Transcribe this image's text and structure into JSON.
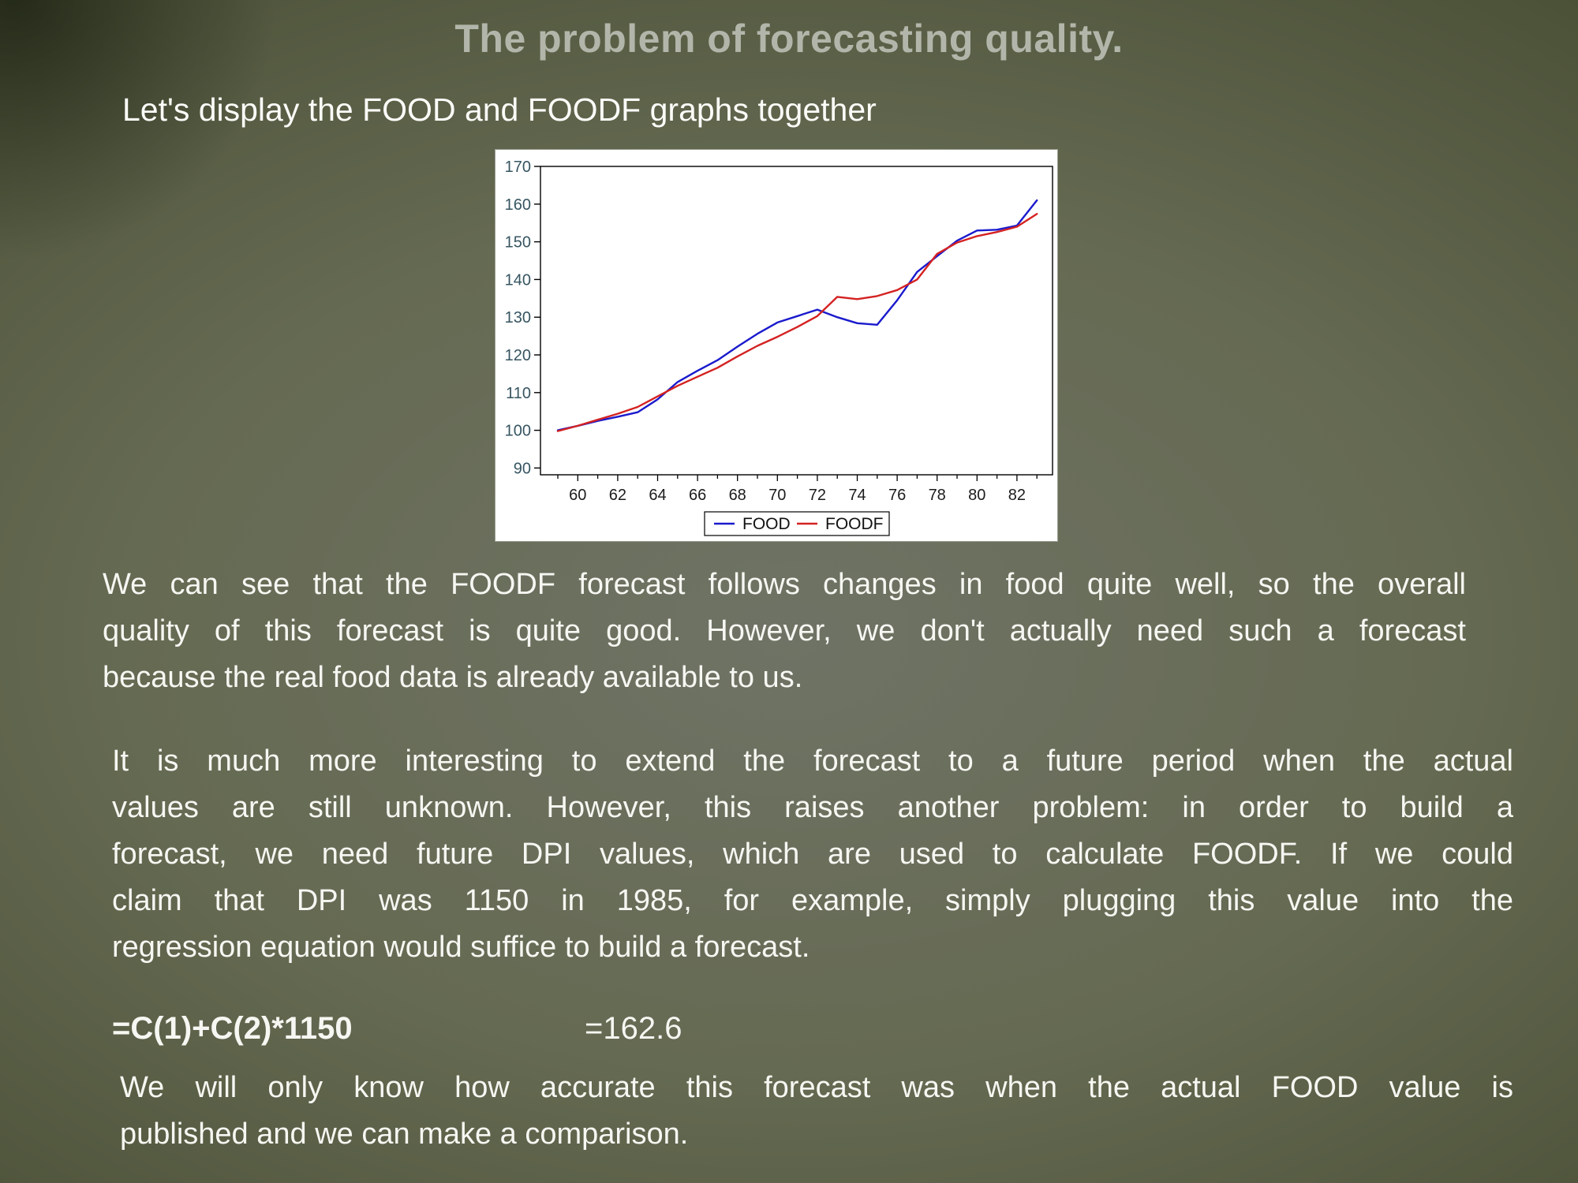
{
  "slide": {
    "title": "The problem of forecasting quality.",
    "subtitle": "Let's display the FOOD and FOODF graphs together",
    "paragraphs": {
      "p1": {
        "lines": [
          "We can see that the FOODF forecast follows changes in food quite well, so the overall",
          "quality of this forecast is quite good. However, we don't actually need such a forecast",
          "because the real food data is already available to us."
        ]
      },
      "p2": {
        "lines": [
          "It is much more interesting to extend the forecast to a future period when the actual",
          "values are still unknown. However, this raises another problem: in order to build a",
          "forecast, we need future DPI values, which are used to calculate FOODF. If we could",
          "claim that DPI was 1150 in 1985, for example, simply plugging this value into the",
          "regression equation would suffice to build a forecast."
        ]
      },
      "p3": {
        "lines": [
          "We will only know how accurate this forecast was when the actual FOOD value is",
          "published and we can make a comparison."
        ]
      }
    },
    "formula": {
      "expression": "=C(1)+C(2)*1150",
      "result": "=162.6"
    }
  },
  "colors": {
    "background_center": "#6f7365",
    "background_edge": "#1d2410",
    "title_text": "#b2b6aa",
    "body_text": "#f6f7f2",
    "chart_background": "#ffffff",
    "axis_line": "#000000",
    "y_tick_label": "#365561",
    "x_tick_label": "#1c1c1c",
    "food_line": "#1a1acd",
    "foodf_line": "#d42222"
  },
  "chart_data": {
    "type": "line",
    "title": "",
    "xlabel": "",
    "ylabel": "",
    "grid": false,
    "ylim": [
      90,
      170
    ],
    "yticks": [
      90,
      100,
      110,
      120,
      130,
      140,
      150,
      160,
      170
    ],
    "xticks": [
      60,
      62,
      64,
      66,
      68,
      70,
      72,
      74,
      76,
      78,
      80,
      82
    ],
    "x_years": [
      59,
      60,
      61,
      62,
      63,
      64,
      65,
      66,
      67,
      68,
      69,
      70,
      71,
      72,
      73,
      74,
      75,
      76,
      77,
      78,
      79,
      80,
      81,
      82,
      83
    ],
    "series": [
      {
        "name": "FOOD",
        "color": "#1a1acd",
        "values": [
          100.0,
          101.2,
          102.5,
          103.6,
          104.8,
          108.2,
          112.8,
          115.8,
          118.6,
          122.2,
          125.6,
          128.6,
          130.3,
          132.0,
          130.0,
          128.4,
          128.0,
          134.5,
          142.0,
          146.2,
          150.3,
          153.0,
          153.2,
          154.3,
          161.0
        ]
      },
      {
        "name": "FOODF",
        "color": "#d42222",
        "values": [
          99.8,
          101.2,
          102.8,
          104.4,
          106.2,
          109.0,
          111.8,
          114.2,
          116.6,
          119.6,
          122.4,
          124.8,
          127.4,
          130.3,
          135.4,
          134.8,
          135.6,
          137.2,
          140.0,
          146.8,
          149.8,
          151.5,
          152.6,
          154.0,
          157.4
        ]
      }
    ],
    "legend": {
      "position": "bottom-center",
      "entries": [
        "FOOD",
        "FOODF"
      ]
    }
  }
}
